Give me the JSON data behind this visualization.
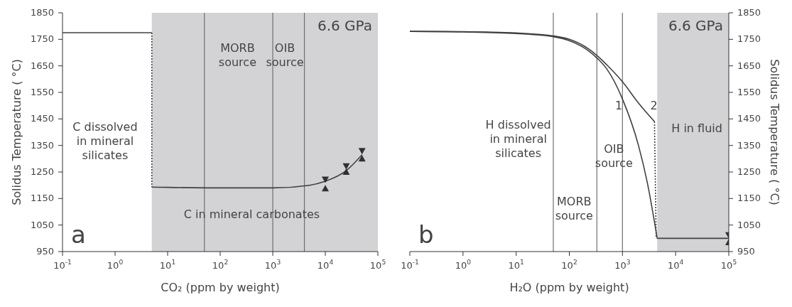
{
  "chart_data": [
    {
      "type": "line",
      "xlabel": "CO₂ (ppm by weight)",
      "ylabel": "Solidus Temperature ( °C)",
      "log": "x",
      "xlim": [
        0.1,
        100000
      ],
      "xticks": [
        {
          "value": 0.1,
          "label": "10$^{-1}$"
        },
        {
          "value": 1,
          "label": "10$^{0}$"
        },
        {
          "value": 10,
          "label": "10$^{1}$"
        },
        {
          "value": 100,
          "label": "10$^{2}$"
        },
        {
          "value": 1000,
          "label": "10$^{3}$"
        },
        {
          "value": 10000,
          "label": "10$^{4}$"
        },
        {
          "value": 100000,
          "label": "10$^{5}$"
        }
      ],
      "ylim": [
        950,
        1850
      ],
      "yticks": [
        950,
        1050,
        1150,
        1250,
        1350,
        1450,
        1550,
        1650,
        1750,
        1850
      ],
      "series": [
        {
          "color": "#404040",
          "line_style": "solid",
          "x": [
            0.1,
            5
          ],
          "values": [
            1775,
            1775
          ]
        },
        {
          "color": "#404040",
          "line_style": "dotted",
          "x": [
            5,
            5
          ],
          "values": [
            1775,
            1193
          ]
        },
        {
          "color": "#404040",
          "line_style": "solid",
          "x": [
            5,
            10,
            100,
            1000,
            5000,
            10000,
            25000,
            50000
          ],
          "values": [
            1193,
            1192,
            1190,
            1190,
            1200,
            1215,
            1255,
            1315
          ]
        },
        {
          "type": "scatter",
          "color": "#303030",
          "marker": "triangle-down",
          "x": [
            10000,
            25000,
            50000
          ],
          "values": [
            1222,
            1272,
            1330
          ]
        },
        {
          "type": "scatter",
          "color": "#303030",
          "marker": "triangle",
          "x": [
            10000,
            25000,
            50000
          ],
          "values": [
            1188,
            1250,
            1300
          ]
        }
      ],
      "bands": [
        {
          "axis": "x",
          "from": 5,
          "to": 100000,
          "color": "#d3d3d5"
        }
      ],
      "ref_lines": [
        {
          "axis": "x",
          "value": 50,
          "color": "#707070"
        },
        {
          "axis": "x",
          "value": 1000,
          "color": "#707070"
        },
        {
          "axis": "x",
          "value": 4000,
          "color": "#707070"
        }
      ],
      "annotations": [
        "6.6 GPa",
        "a",
        "C dissolved\nin mineral\nsilicates",
        "MORB\nsource",
        "OIB\nsource",
        "C in mineral carbonates"
      ]
    },
    {
      "type": "line",
      "xlabel": "H₂O (ppm by weight)",
      "y2label": "Solidus Temperature ( °C)",
      "log": "x",
      "xlim": [
        0.1,
        100000
      ],
      "xticks": [
        {
          "value": 0.1,
          "label": "10$^{-1}$"
        },
        {
          "value": 1,
          "label": "10$^{0}$"
        },
        {
          "value": 10,
          "label": "10$^{1}$"
        },
        {
          "value": 100,
          "label": "10$^{2}$"
        },
        {
          "value": 1000,
          "label": "10$^{3}$"
        },
        {
          "value": 10000,
          "label": "10$^{4}$"
        },
        {
          "value": 100000,
          "label": "10$^{5}$"
        }
      ],
      "y2lim": [
        950,
        1850
      ],
      "y2ticks": [
        950,
        1050,
        1150,
        1250,
        1350,
        1450,
        1550,
        1650,
        1750,
        1850
      ],
      "series": [
        {
          "axis": "y2",
          "color": "#404040",
          "line_style": "solid",
          "x": [
            0.1,
            1,
            10,
            50,
            100,
            200,
            350,
            500,
            1000,
            2000,
            3000,
            4500
          ],
          "values": [
            1780,
            1778,
            1772,
            1760,
            1745,
            1715,
            1675,
            1640,
            1525,
            1350,
            1200,
            1000
          ]
        },
        {
          "axis": "y2",
          "color": "#404040",
          "line_style": "solid",
          "x": [
            0.1,
            1,
            10,
            50,
            100,
            200,
            350,
            500,
            1000,
            2000,
            4000
          ],
          "values": [
            1780,
            1779,
            1774,
            1763,
            1750,
            1722,
            1685,
            1655,
            1590,
            1510,
            1440
          ]
        },
        {
          "axis": "y2",
          "color": "#404040",
          "line_style": "dotted",
          "x": [
            4000,
            4300
          ],
          "values": [
            1440,
            1000
          ]
        },
        {
          "axis": "y2",
          "color": "#404040",
          "line_style": "solid",
          "x": [
            4500,
            100000
          ],
          "values": [
            1000,
            1000
          ]
        },
        {
          "type": "scatter",
          "axis": "y2",
          "color": "#303030",
          "marker": "triangle-down",
          "x": [
            100000
          ],
          "values": [
            1012
          ]
        },
        {
          "type": "scatter",
          "axis": "y2",
          "color": "#303030",
          "marker": "triangle",
          "x": [
            100000
          ],
          "values": [
            985
          ]
        }
      ],
      "bands": [
        {
          "axis": "x",
          "from": 4500,
          "to": 100000,
          "color": "#d3d3d5"
        }
      ],
      "ref_lines": [
        {
          "axis": "x",
          "value": 50,
          "color": "#707070"
        },
        {
          "axis": "x",
          "value": 330,
          "color": "#707070"
        },
        {
          "axis": "x",
          "value": 1000,
          "color": "#707070"
        }
      ],
      "annotations": [
        "6.6 GPa",
        "b",
        "H dissolved\nin mineral\nsilicates",
        "MORB\nsource",
        "OIB\nsource",
        "H in fluid",
        "1",
        "2"
      ]
    }
  ]
}
